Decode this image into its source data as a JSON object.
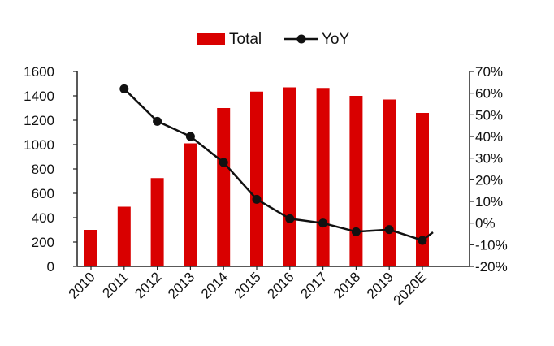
{
  "chart_data": {
    "type": "bar",
    "categories": [
      "2010",
      "2011",
      "2012",
      "2013",
      "2014",
      "2015",
      "2016",
      "2017",
      "2018",
      "2019",
      "2020E"
    ],
    "series": [
      {
        "name": "Total",
        "kind": "bar",
        "axis": "left",
        "color": "#d90000",
        "values": [
          300,
          490,
          725,
          1010,
          1300,
          1435,
          1470,
          1465,
          1400,
          1370,
          1260
        ]
      },
      {
        "name": "YoY",
        "kind": "line",
        "axis": "right",
        "color": "#111111",
        "unit": "%",
        "values": [
          null,
          62,
          47,
          40,
          28,
          11,
          2,
          0,
          -4,
          -3,
          -8
        ]
      }
    ],
    "y_left": {
      "min": 0,
      "max": 1600,
      "ticks": [
        "0",
        "200",
        "400",
        "600",
        "800",
        "1000",
        "1200",
        "1400",
        "1600"
      ]
    },
    "y_right": {
      "min": -20,
      "max": 70,
      "ticks": [
        "-20%",
        "-10%",
        "0%",
        "10%",
        "20%",
        "30%",
        "40%",
        "50%",
        "60%",
        "70%"
      ]
    },
    "legend_position": "top-center",
    "grid": false
  }
}
